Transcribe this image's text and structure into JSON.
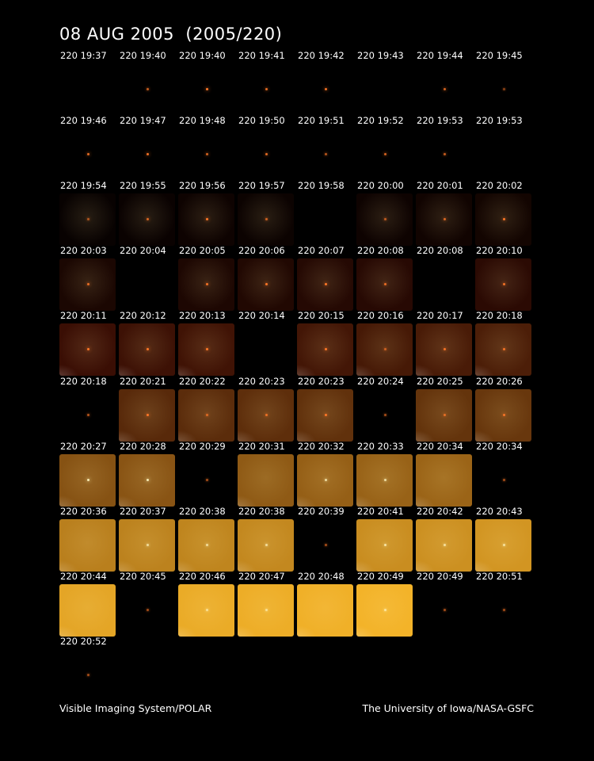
{
  "title": "08 AUG 2005  (2005/220)",
  "footer": {
    "left": "Visible Imaging System/POLAR",
    "right": "The University of Iowa/NASA-GSFC"
  },
  "frames": [
    {
      "label": "220 19:37",
      "fill": 0,
      "dot": 0
    },
    {
      "label": "220 19:40",
      "fill": 0,
      "dot": 0.6
    },
    {
      "label": "220 19:40",
      "fill": 0,
      "dot": 1
    },
    {
      "label": "220 19:41",
      "fill": 0,
      "dot": 0.8
    },
    {
      "label": "220 19:42",
      "fill": 0,
      "dot": 0.9
    },
    {
      "label": "220 19:43",
      "fill": 0,
      "dot": 0
    },
    {
      "label": "220 19:44",
      "fill": 0,
      "dot": 0.7
    },
    {
      "label": "220 19:45",
      "fill": 0,
      "dot": 0.2
    },
    {
      "label": "220 19:46",
      "fill": 0,
      "dot": 0.8
    },
    {
      "label": "220 19:47",
      "fill": 0,
      "dot": 0.9
    },
    {
      "label": "220 19:48",
      "fill": 0,
      "dot": 0.7
    },
    {
      "label": "220 19:50",
      "fill": 0,
      "dot": 0.8
    },
    {
      "label": "220 19:51",
      "fill": 0,
      "dot": 0.5
    },
    {
      "label": "220 19:52",
      "fill": 0,
      "dot": 0.7
    },
    {
      "label": "220 19:53",
      "fill": 0,
      "dot": 0.6
    },
    {
      "label": "220 19:53",
      "fill": 0,
      "dot": 0
    },
    {
      "label": "220 19:54",
      "fill": 0.04,
      "dot": 0.4
    },
    {
      "label": "220 19:55",
      "fill": 0.05,
      "dot": 0.7
    },
    {
      "label": "220 19:56",
      "fill": 0.07,
      "dot": 1
    },
    {
      "label": "220 19:57",
      "fill": 0.06,
      "dot": 0.6
    },
    {
      "label": "220 19:58",
      "fill": 0,
      "dot": 0
    },
    {
      "label": "220 20:00",
      "fill": 0.07,
      "dot": 0.5
    },
    {
      "label": "220 20:01",
      "fill": 0.09,
      "dot": 0.7
    },
    {
      "label": "220 20:02",
      "fill": 0.1,
      "dot": 1
    },
    {
      "label": "220 20:03",
      "fill": 0.14,
      "dot": 0.8
    },
    {
      "label": "220 20:04",
      "fill": 0,
      "dot": 0
    },
    {
      "label": "220 20:05",
      "fill": 0.15,
      "dot": 0.9
    },
    {
      "label": "220 20:06",
      "fill": 0.17,
      "dot": 1
    },
    {
      "label": "220 20:07",
      "fill": 0.19,
      "dot": 1
    },
    {
      "label": "220 20:08",
      "fill": 0.2,
      "dot": 0.8
    },
    {
      "label": "220 20:08",
      "fill": 0,
      "dot": 0
    },
    {
      "label": "220 20:10",
      "fill": 0.22,
      "dot": 0.9
    },
    {
      "label": "220 20:11",
      "fill": 0.3,
      "dot": 1
    },
    {
      "label": "220 20:12",
      "fill": 0.31,
      "dot": 1
    },
    {
      "label": "220 20:13",
      "fill": 0.32,
      "dot": 1
    },
    {
      "label": "220 20:14",
      "fill": 0,
      "dot": 0
    },
    {
      "label": "220 20:15",
      "fill": 0.33,
      "dot": 1
    },
    {
      "label": "220 20:16",
      "fill": 0.34,
      "dot": 0.5
    },
    {
      "label": "220 20:17",
      "fill": 0.35,
      "dot": 0.9
    },
    {
      "label": "220 20:18",
      "fill": 0.36,
      "dot": 0.9
    },
    {
      "label": "220 20:18",
      "fill": 0,
      "dot": 0.5
    },
    {
      "label": "220 20:21",
      "fill": 0.4,
      "dot": 1
    },
    {
      "label": "220 20:22",
      "fill": 0.41,
      "dot": 0.6
    },
    {
      "label": "220 20:23",
      "fill": 0.42,
      "dot": 0.8
    },
    {
      "label": "220 20:23",
      "fill": 0.43,
      "dot": 1
    },
    {
      "label": "220 20:24",
      "fill": 0,
      "dot": 0.4
    },
    {
      "label": "220 20:25",
      "fill": 0.44,
      "dot": 0.7
    },
    {
      "label": "220 20:26",
      "fill": 0.45,
      "dot": 0.9
    },
    {
      "label": "220 20:27",
      "fill": 0.55,
      "dot": 0.9
    },
    {
      "label": "220 20:28",
      "fill": 0.56,
      "dot": 0.9
    },
    {
      "label": "220 20:29",
      "fill": 0,
      "dot": 0.4
    },
    {
      "label": "220 20:31",
      "fill": 0.58,
      "dot": 0
    },
    {
      "label": "220 20:32",
      "fill": 0.6,
      "dot": 0.7
    },
    {
      "label": "220 20:33",
      "fill": 0.61,
      "dot": 0.7
    },
    {
      "label": "220 20:34",
      "fill": 0.62,
      "dot": 0
    },
    {
      "label": "220 20:34",
      "fill": 0,
      "dot": 0.4
    },
    {
      "label": "220 20:36",
      "fill": 0.72,
      "dot": 0
    },
    {
      "label": "220 20:37",
      "fill": 0.73,
      "dot": 0.6
    },
    {
      "label": "220 20:38",
      "fill": 0.74,
      "dot": 0.6
    },
    {
      "label": "220 20:38",
      "fill": 0.75,
      "dot": 0.6
    },
    {
      "label": "220 20:39",
      "fill": 0,
      "dot": 0.4
    },
    {
      "label": "220 20:41",
      "fill": 0.77,
      "dot": 0.7
    },
    {
      "label": "220 20:42",
      "fill": 0.78,
      "dot": 0.6
    },
    {
      "label": "220 20:43",
      "fill": 0.8,
      "dot": 0.6
    },
    {
      "label": "220 20:44",
      "fill": 0.86,
      "dot": 0
    },
    {
      "label": "220 20:45",
      "fill": 0,
      "dot": 0.4
    },
    {
      "label": "220 20:46",
      "fill": 0.88,
      "dot": 0.5
    },
    {
      "label": "220 20:47",
      "fill": 0.89,
      "dot": 0.5
    },
    {
      "label": "220 20:48",
      "fill": 0.9,
      "dot": 0
    },
    {
      "label": "220 20:49",
      "fill": 0.91,
      "dot": 0.6
    },
    {
      "label": "220 20:49",
      "fill": 0,
      "dot": 0.4
    },
    {
      "label": "220 20:51",
      "fill": 0,
      "dot": 0.4
    },
    {
      "label": "220 20:52",
      "fill": 0,
      "dot": 0.4
    }
  ],
  "colors": {
    "background": "#000000",
    "text": "#ffffff",
    "dark_frame": "#3a0e04",
    "bright_frame": "#f0b028"
  }
}
